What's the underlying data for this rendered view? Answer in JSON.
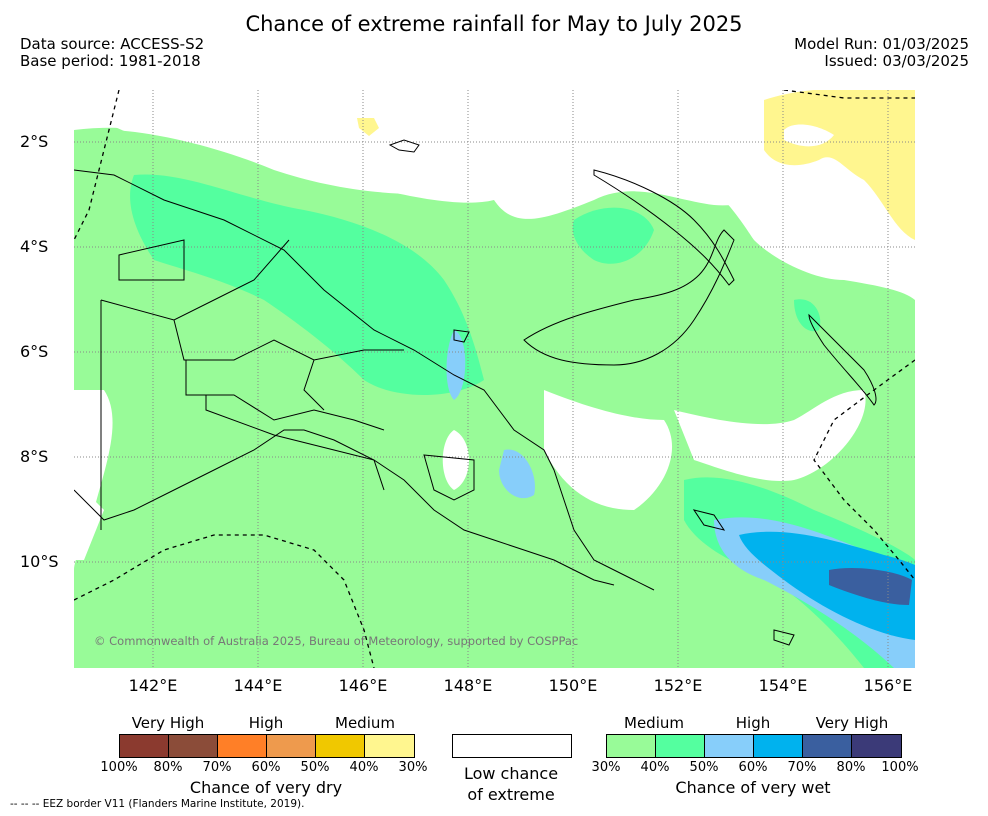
{
  "title": "Chance of extreme rainfall for May to July 2025",
  "meta": {
    "data_source": "Data source: ACCESS-S2",
    "base_period": "Base period: 1981-2018",
    "model_run": "Model Run: 01/03/2025",
    "issued": "Issued: 03/03/2025"
  },
  "map": {
    "lat_labels": [
      "2°S",
      "4°S",
      "6°S",
      "8°S",
      "10°S"
    ],
    "lon_labels": [
      "142°E",
      "144°E",
      "146°E",
      "148°E",
      "150°E",
      "152°E",
      "154°E",
      "156°E"
    ],
    "copyright": "© Commonwealth of Australia 2025, Bureau of Meteorology, supported by COSPPac"
  },
  "legend": {
    "dry": {
      "categories": [
        "Very High",
        "High",
        "Medium"
      ],
      "colors": [
        "#8b3a2f",
        "#8b4c39",
        "#ff7f27",
        "#ee9a4d",
        "#f0c800",
        "#fff68f"
      ],
      "ticks": [
        "100%",
        "80%",
        "70%",
        "60%",
        "50%",
        "40%",
        "30%"
      ],
      "label": "Chance of very dry"
    },
    "low": {
      "line1": "Low chance",
      "line2": "of extreme"
    },
    "wet": {
      "categories": [
        "Medium",
        "High",
        "Very High"
      ],
      "colors": [
        "#98fb98",
        "#54ff9f",
        "#87cefa",
        "#00b2ee",
        "#3a5f9f",
        "#3b3a78"
      ],
      "ticks": [
        "30%",
        "40%",
        "50%",
        "60%",
        "70%",
        "80%",
        "100%"
      ],
      "label": "Chance of very wet"
    },
    "eez_note": "--  --  -- EEZ border V11 (Flanders Marine Institute, 2019)."
  }
}
